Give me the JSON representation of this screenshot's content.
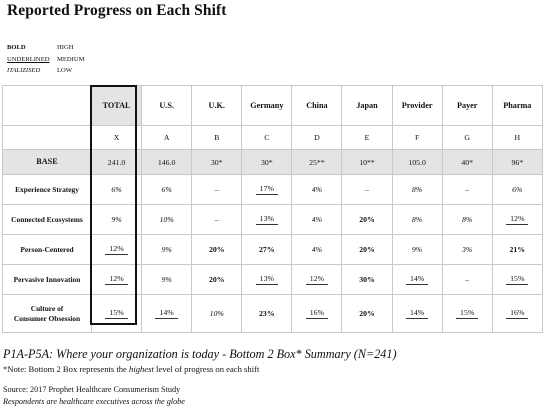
{
  "title": "Reported Progress on Each Shift",
  "legend": [
    {
      "key": "BOLD",
      "value": "HIGH"
    },
    {
      "key": "UNDERLINED",
      "value": "MEDIUM"
    },
    {
      "key": "ITALIZISED",
      "value": "LOW"
    }
  ],
  "table": {
    "columns": [
      {
        "label": "TOTAL",
        "letter": "X"
      },
      {
        "label": "U.S.",
        "letter": "A"
      },
      {
        "label": "U.K.",
        "letter": "B"
      },
      {
        "label": "Germany",
        "letter": "C"
      },
      {
        "label": "China",
        "letter": "D"
      },
      {
        "label": "Japan",
        "letter": "E"
      },
      {
        "label": "Provider",
        "letter": "F"
      },
      {
        "label": "Payer",
        "letter": "G"
      },
      {
        "label": "Pharma",
        "letter": "H"
      }
    ],
    "base": {
      "label": "BASE",
      "values": [
        "241.0",
        "146.0",
        "30*",
        "30*",
        "25**",
        "10**",
        "105.0",
        "40*",
        "96*"
      ]
    },
    "rows": [
      {
        "label": "Experience Strategy",
        "cells": [
          {
            "t": "6%",
            "s": "i"
          },
          {
            "t": "6%",
            "s": "i"
          },
          {
            "t": "–",
            "s": ""
          },
          {
            "t": "17%",
            "s": "u"
          },
          {
            "t": "4%",
            "s": "i"
          },
          {
            "t": "–",
            "s": ""
          },
          {
            "t": "8%",
            "s": "i"
          },
          {
            "t": "–",
            "s": ""
          },
          {
            "t": "6%",
            "s": "i"
          }
        ]
      },
      {
        "label": "Connected Ecosystems",
        "cells": [
          {
            "t": "9%",
            "s": "i"
          },
          {
            "t": "10%",
            "s": "i"
          },
          {
            "t": "–",
            "s": ""
          },
          {
            "t": "13%",
            "s": "u"
          },
          {
            "t": "4%",
            "s": "i"
          },
          {
            "t": "20%",
            "s": "b"
          },
          {
            "t": "8%",
            "s": "i"
          },
          {
            "t": "8%",
            "s": "i"
          },
          {
            "t": "12%",
            "s": "u"
          }
        ]
      },
      {
        "label": "Person-Centered",
        "cells": [
          {
            "t": "12%",
            "s": "u"
          },
          {
            "t": "9%",
            "s": "i"
          },
          {
            "t": "20%",
            "s": "b"
          },
          {
            "t": "27%",
            "s": "b"
          },
          {
            "t": "4%",
            "s": "i"
          },
          {
            "t": "20%",
            "s": "b"
          },
          {
            "t": "9%",
            "s": "i"
          },
          {
            "t": "3%",
            "s": "i"
          },
          {
            "t": "21%",
            "s": "b"
          }
        ]
      },
      {
        "label": "Pervasive Innovation",
        "cells": [
          {
            "t": "12%",
            "s": "u"
          },
          {
            "t": "9%",
            "s": "i"
          },
          {
            "t": "20%",
            "s": "b"
          },
          {
            "t": "13%",
            "s": "u"
          },
          {
            "t": "12%",
            "s": "u"
          },
          {
            "t": "30%",
            "s": "b"
          },
          {
            "t": "14%",
            "s": "u"
          },
          {
            "t": "–",
            "s": ""
          },
          {
            "t": "15%",
            "s": "u"
          }
        ]
      },
      {
        "label_line1": "Culture of",
        "label_line2": "Consumer Obsession",
        "cells": [
          {
            "t": "15%",
            "s": "u"
          },
          {
            "t": "14%",
            "s": "u"
          },
          {
            "t": "10%",
            "s": "i"
          },
          {
            "t": "23%",
            "s": "b"
          },
          {
            "t": "16%",
            "s": "u"
          },
          {
            "t": "20%",
            "s": "b"
          },
          {
            "t": "14%",
            "s": "u"
          },
          {
            "t": "15%",
            "s": "u"
          },
          {
            "t": "16%",
            "s": "u"
          }
        ]
      }
    ]
  },
  "footer": {
    "question": "P1A-P5A: Where your organization is today - Bottom 2 Box* Summary (N=241)",
    "note_before": "*Note:  Bottom 2 Box represents the ",
    "note_emphasis": "highest",
    "note_after": " level of progress on each shift",
    "source": "Source: 2017 Prophet Healthcare Consumerism Study",
    "respondents": "Respondents are healthcare executives across the globe"
  }
}
